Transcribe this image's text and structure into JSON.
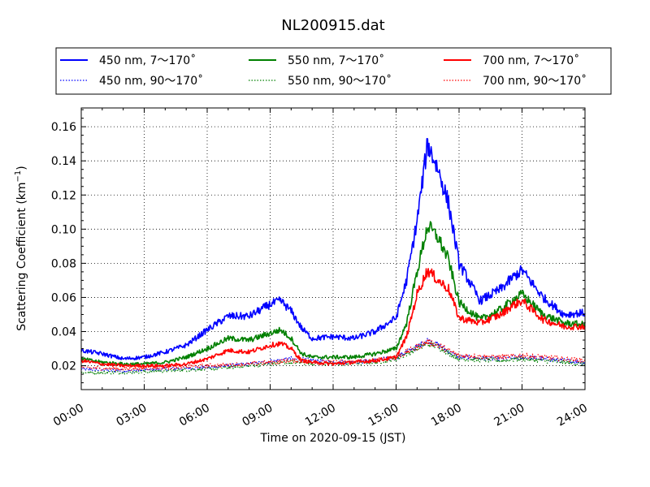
{
  "chart_data": {
    "type": "line",
    "title": "NL200915.dat",
    "xlabel": "Time on 2020-09-15 (JST)",
    "ylabel": "Scattering Coefficient (km",
    "ylabel_sup": "−1",
    "ylabel_close": ")",
    "x_ticks": [
      "00:00",
      "03:00",
      "06:00",
      "09:00",
      "12:00",
      "15:00",
      "18:00",
      "21:00",
      "24:00"
    ],
    "y_ticks": [
      "0.02",
      "0.04",
      "0.06",
      "0.08",
      "0.10",
      "0.12",
      "0.14",
      "0.16"
    ],
    "y_tick_values": [
      0.02,
      0.04,
      0.06,
      0.08,
      0.1,
      0.12,
      0.14,
      0.16
    ],
    "xlim": [
      0,
      24
    ],
    "ylim": [
      0.006,
      0.171
    ],
    "grid": true,
    "legend_position": "top",
    "series": [
      {
        "name": "450 nm, 7～170˚",
        "color": "#0000ff",
        "style": "solid",
        "x": [
          0,
          1,
          2,
          3,
          4,
          5,
          6,
          7,
          8,
          9,
          9.5,
          10,
          10.5,
          11,
          12,
          13,
          14,
          15,
          15.5,
          16,
          16.5,
          17,
          17.5,
          18,
          19,
          20,
          20.5,
          21,
          22,
          23,
          24
        ],
        "y": [
          0.029,
          0.027,
          0.024,
          0.025,
          0.028,
          0.032,
          0.041,
          0.049,
          0.049,
          0.056,
          0.058,
          0.052,
          0.042,
          0.036,
          0.037,
          0.036,
          0.04,
          0.048,
          0.07,
          0.105,
          0.15,
          0.135,
          0.115,
          0.08,
          0.058,
          0.065,
          0.071,
          0.076,
          0.06,
          0.05,
          0.051
        ]
      },
      {
        "name": "450 nm, 90～170˚",
        "color": "#0000ff",
        "style": "dotted",
        "x": [
          0,
          2,
          4,
          6,
          8,
          10,
          12,
          14,
          15,
          16,
          16.5,
          17,
          18,
          20,
          21,
          22,
          24
        ],
        "y": [
          0.018,
          0.017,
          0.018,
          0.019,
          0.021,
          0.024,
          0.022,
          0.023,
          0.025,
          0.031,
          0.035,
          0.032,
          0.025,
          0.024,
          0.025,
          0.024,
          0.022
        ]
      },
      {
        "name": "550 nm, 7～170˚",
        "color": "#008000",
        "style": "solid",
        "x": [
          0,
          1,
          2,
          3,
          4,
          5,
          6,
          7,
          8,
          9,
          9.5,
          10,
          10.5,
          11,
          12,
          13,
          14,
          15,
          15.5,
          16,
          16.5,
          17,
          17.5,
          18,
          19,
          20,
          20.5,
          21,
          22,
          23,
          24
        ],
        "y": [
          0.024,
          0.022,
          0.021,
          0.021,
          0.022,
          0.025,
          0.03,
          0.036,
          0.035,
          0.039,
          0.041,
          0.036,
          0.027,
          0.025,
          0.025,
          0.025,
          0.027,
          0.03,
          0.045,
          0.075,
          0.102,
          0.095,
          0.082,
          0.057,
          0.047,
          0.053,
          0.058,
          0.062,
          0.05,
          0.045,
          0.044
        ]
      },
      {
        "name": "550 nm, 90～170˚",
        "color": "#008000",
        "style": "dotted",
        "x": [
          0,
          2,
          4,
          6,
          8,
          10,
          12,
          14,
          15,
          16,
          16.5,
          17,
          18,
          20,
          21,
          22,
          24
        ],
        "y": [
          0.016,
          0.016,
          0.017,
          0.018,
          0.02,
          0.022,
          0.021,
          0.022,
          0.024,
          0.03,
          0.033,
          0.031,
          0.024,
          0.023,
          0.024,
          0.023,
          0.021
        ]
      },
      {
        "name": "700 nm, 7～170˚",
        "color": "#ff0000",
        "style": "solid",
        "x": [
          0,
          1,
          2,
          3,
          4,
          5,
          6,
          7,
          8,
          9,
          9.5,
          10,
          10.5,
          11,
          12,
          13,
          14,
          15,
          15.5,
          16,
          16.5,
          17,
          17.5,
          18,
          19,
          20,
          20.5,
          21,
          22,
          23,
          24
        ],
        "y": [
          0.023,
          0.021,
          0.02,
          0.02,
          0.02,
          0.021,
          0.024,
          0.029,
          0.028,
          0.032,
          0.033,
          0.03,
          0.023,
          0.022,
          0.021,
          0.022,
          0.023,
          0.025,
          0.037,
          0.062,
          0.076,
          0.07,
          0.065,
          0.048,
          0.045,
          0.05,
          0.055,
          0.058,
          0.047,
          0.043,
          0.043
        ]
      },
      {
        "name": "700 nm, 90～170˚",
        "color": "#ff0000",
        "style": "dotted",
        "x": [
          0,
          2,
          4,
          6,
          8,
          10,
          12,
          14,
          15,
          16,
          16.5,
          17,
          18,
          20,
          21,
          22,
          24
        ],
        "y": [
          0.019,
          0.018,
          0.019,
          0.02,
          0.021,
          0.023,
          0.022,
          0.023,
          0.025,
          0.031,
          0.034,
          0.032,
          0.026,
          0.025,
          0.026,
          0.025,
          0.023
        ]
      }
    ]
  }
}
